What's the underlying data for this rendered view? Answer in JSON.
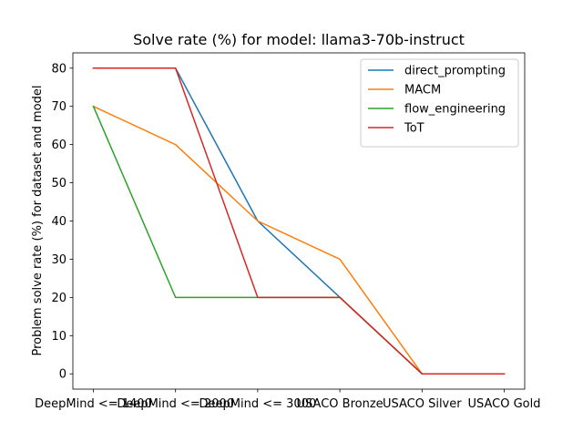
{
  "chart_data": {
    "type": "line",
    "title": "Solve rate (%) for model: llama3-70b-instruct",
    "xlabel": "",
    "ylabel": "Problem solve rate (%) for dataset and model",
    "categories": [
      "DeepMind <= 1400",
      "DeepMind <= 2000",
      "DeepMind <= 3000",
      "USACO Bronze",
      "USACO Silver",
      "USACO Gold"
    ],
    "ylim": [
      -4,
      84
    ],
    "yticks": [
      0,
      10,
      20,
      30,
      40,
      50,
      60,
      70,
      80
    ],
    "grid": false,
    "legend_position": "top-right",
    "series": [
      {
        "name": "direct_prompting",
        "color": "#1f77b4",
        "values": [
          80,
          80,
          40,
          20,
          0,
          0
        ]
      },
      {
        "name": "MACM",
        "color": "#ff7f0e",
        "values": [
          70,
          60,
          40,
          30,
          0,
          0
        ]
      },
      {
        "name": "flow_engineering",
        "color": "#2ca02c",
        "values": [
          70,
          20,
          20,
          20,
          0,
          0
        ]
      },
      {
        "name": "ToT",
        "color": "#d62728",
        "values": [
          80,
          80,
          20,
          20,
          0,
          0
        ]
      }
    ]
  }
}
